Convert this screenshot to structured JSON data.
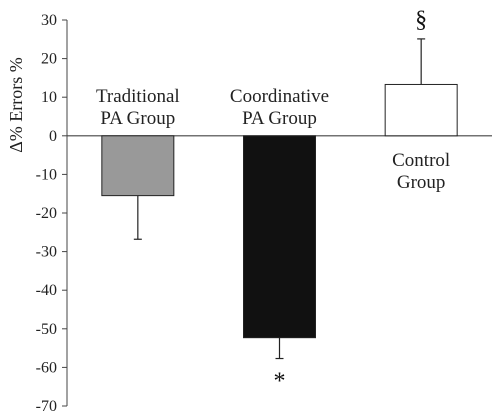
{
  "chart_data": {
    "type": "bar",
    "ylabel": "Δ% Errors %",
    "ylim": [
      -70,
      30
    ],
    "yticks": [
      30,
      20,
      10,
      0,
      -10,
      -20,
      -30,
      -40,
      -50,
      -60,
      -70
    ],
    "grid": false,
    "categories": [
      {
        "label_lines": [
          "Traditional",
          "PA Group"
        ],
        "label_position": "above-axis"
      },
      {
        "label_lines": [
          "Coordinative",
          "PA Group"
        ],
        "label_position": "above-axis"
      },
      {
        "label_lines": [
          "Control",
          "Group"
        ],
        "label_position": "below-axis"
      }
    ],
    "values": [
      -15.5,
      -52.3,
      13.3
    ],
    "error": [
      11.3,
      5.4,
      11.8
    ],
    "colors": [
      "#999999",
      "#111111",
      "#ffffff"
    ],
    "annotations": [
      "",
      "*",
      "§"
    ]
  }
}
